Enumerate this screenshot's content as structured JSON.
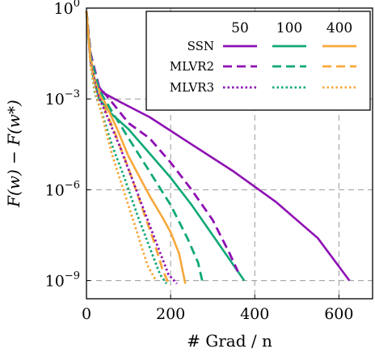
{
  "chart_data": {
    "type": "line",
    "yscale": "log",
    "xlabel": "# Grad / n",
    "ylabel": "F(w) − F(w*)",
    "xlim": [
      0,
      680
    ],
    "ylim_exp": [
      -9.6,
      0
    ],
    "xticks": [
      0,
      200,
      400,
      600
    ],
    "yticks": [
      {
        "base": "10",
        "exp": "0",
        "pow": 0
      },
      {
        "base": "10",
        "exp": "−3",
        "pow": -3
      },
      {
        "base": "10",
        "exp": "−6",
        "pow": -6
      },
      {
        "base": "10",
        "exp": "−9",
        "pow": -9
      }
    ],
    "grid": true,
    "legend": {
      "position": "top-right",
      "column_headers": [
        "50",
        "100",
        "400"
      ],
      "row_labels": [
        "SSN",
        "MLVR2",
        "MLVR3"
      ]
    },
    "colors": {
      "50": "#8e10b3",
      "100": "#10a878",
      "400": "#f7a83b"
    },
    "series": [
      {
        "name": "SSN, 50",
        "method": "SSN",
        "size": "50",
        "dash": "solid",
        "points": [
          [
            0,
            -0.1
          ],
          [
            5,
            -1.0
          ],
          [
            10,
            -1.8
          ],
          [
            20,
            -2.4
          ],
          [
            40,
            -2.8
          ],
          [
            80,
            -3.1
          ],
          [
            150,
            -3.6
          ],
          [
            250,
            -4.5
          ],
          [
            350,
            -5.4
          ],
          [
            450,
            -6.4
          ],
          [
            550,
            -7.6
          ],
          [
            625,
            -9.0
          ]
        ]
      },
      {
        "name": "SSN, 100",
        "method": "SSN",
        "size": "100",
        "dash": "solid",
        "points": [
          [
            0,
            -0.1
          ],
          [
            5,
            -1.0
          ],
          [
            15,
            -2.2
          ],
          [
            30,
            -3.0
          ],
          [
            60,
            -3.5
          ],
          [
            100,
            -4.0
          ],
          [
            150,
            -4.8
          ],
          [
            200,
            -5.6
          ],
          [
            250,
            -6.5
          ],
          [
            300,
            -7.5
          ],
          [
            340,
            -8.3
          ],
          [
            375,
            -9.0
          ]
        ]
      },
      {
        "name": "SSN, 400",
        "method": "SSN",
        "size": "400",
        "dash": "solid",
        "points": [
          [
            0,
            -0.1
          ],
          [
            5,
            -0.9
          ],
          [
            10,
            -1.6
          ],
          [
            20,
            -2.4
          ],
          [
            40,
            -3.0
          ],
          [
            70,
            -3.9
          ],
          [
            100,
            -4.9
          ],
          [
            150,
            -6.2
          ],
          [
            180,
            -6.9
          ],
          [
            200,
            -7.4
          ],
          [
            220,
            -8.1
          ],
          [
            235,
            -9.1
          ]
        ]
      },
      {
        "name": "MLVR2, 50",
        "method": "MLVR2",
        "size": "50",
        "dash": "dashed",
        "points": [
          [
            0,
            -0.1
          ],
          [
            10,
            -1.5
          ],
          [
            30,
            -2.6
          ],
          [
            60,
            -3.1
          ],
          [
            100,
            -3.8
          ],
          [
            150,
            -4.3
          ],
          [
            200,
            -5.1
          ],
          [
            250,
            -6.0
          ],
          [
            300,
            -7.0
          ],
          [
            340,
            -8.1
          ],
          [
            360,
            -8.7
          ]
        ]
      },
      {
        "name": "MLVR2, 100",
        "method": "MLVR2",
        "size": "100",
        "dash": "dashed",
        "points": [
          [
            0,
            -0.1
          ],
          [
            10,
            -1.6
          ],
          [
            30,
            -2.7
          ],
          [
            60,
            -3.4
          ],
          [
            100,
            -4.3
          ],
          [
            150,
            -5.4
          ],
          [
            200,
            -6.5
          ],
          [
            240,
            -7.6
          ],
          [
            265,
            -8.4
          ],
          [
            275,
            -9.0
          ]
        ]
      },
      {
        "name": "MLVR2, 400",
        "method": "MLVR2",
        "size": "400",
        "dash": "dashed",
        "points": [
          [
            0,
            -0.1
          ],
          [
            10,
            -1.8
          ],
          [
            20,
            -2.4
          ],
          [
            40,
            -3.2
          ],
          [
            70,
            -4.2
          ],
          [
            100,
            -5.3
          ],
          [
            130,
            -6.5
          ],
          [
            160,
            -7.7
          ],
          [
            180,
            -8.6
          ],
          [
            195,
            -9.1
          ]
        ]
      },
      {
        "name": "MLVR3, 50",
        "method": "MLVR3",
        "size": "50",
        "dash": "dotted",
        "points": [
          [
            0,
            -0.1
          ],
          [
            10,
            -1.8
          ],
          [
            25,
            -2.8
          ],
          [
            50,
            -3.6
          ],
          [
            80,
            -4.6
          ],
          [
            110,
            -5.7
          ],
          [
            140,
            -6.8
          ],
          [
            170,
            -7.9
          ],
          [
            195,
            -8.8
          ],
          [
            215,
            -9.1
          ]
        ]
      },
      {
        "name": "MLVR3, 100",
        "method": "MLVR3",
        "size": "100",
        "dash": "dotted",
        "points": [
          [
            0,
            -0.1
          ],
          [
            10,
            -1.9
          ],
          [
            20,
            -2.8
          ],
          [
            40,
            -3.6
          ],
          [
            60,
            -4.5
          ],
          [
            90,
            -5.6
          ],
          [
            120,
            -6.8
          ],
          [
            150,
            -7.9
          ],
          [
            175,
            -8.8
          ],
          [
            190,
            -9.1
          ]
        ]
      },
      {
        "name": "MLVR3, 400",
        "method": "MLVR3",
        "size": "400",
        "dash": "dotted",
        "points": [
          [
            0,
            -0.1
          ],
          [
            10,
            -1.9
          ],
          [
            20,
            -2.7
          ],
          [
            40,
            -3.7
          ],
          [
            60,
            -4.8
          ],
          [
            90,
            -6.1
          ],
          [
            120,
            -7.4
          ],
          [
            145,
            -8.5
          ],
          [
            165,
            -9.0
          ]
        ]
      }
    ]
  }
}
